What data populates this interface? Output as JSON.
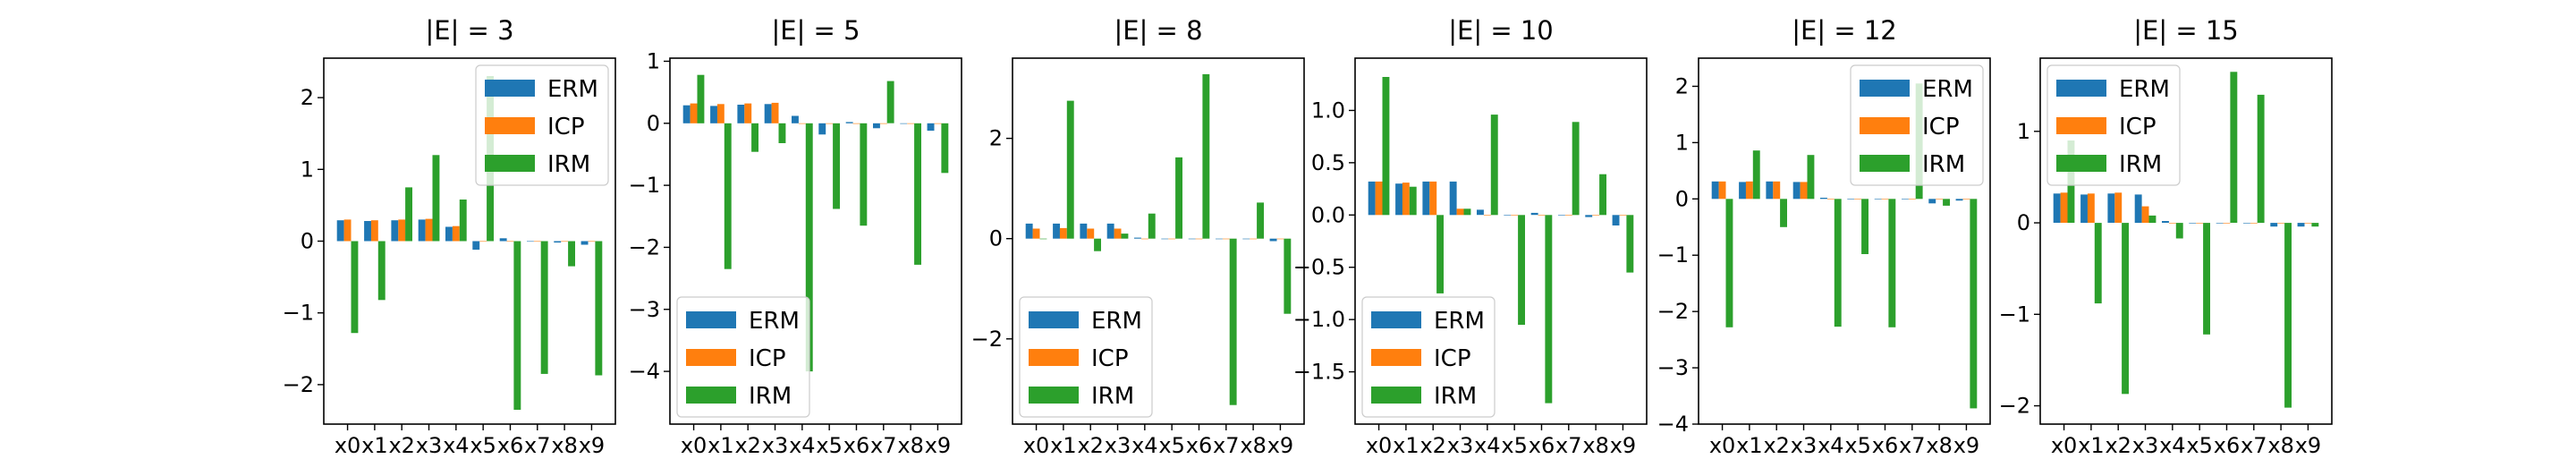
{
  "colors": {
    "ERM": "#1f77b4",
    "ICP": "#ff7f0e",
    "IRM": "#2ca02c"
  },
  "chart_data": [
    {
      "type": "bar",
      "title": "|E| = 3",
      "categories": [
        "x0",
        "x1",
        "x2",
        "x3",
        "x4",
        "x5",
        "x6",
        "x7",
        "x8",
        "x9"
      ],
      "series": [
        {
          "name": "ERM",
          "values": [
            0.29,
            0.28,
            0.29,
            0.3,
            0.2,
            -0.12,
            0.04,
            0.0,
            -0.02,
            -0.05
          ]
        },
        {
          "name": "ICP",
          "values": [
            0.3,
            0.29,
            0.3,
            0.31,
            0.21,
            0.0,
            0.0,
            0.0,
            0.0,
            0.0
          ]
        },
        {
          "name": "IRM",
          "values": [
            -1.28,
            -0.82,
            0.75,
            1.2,
            0.58,
            2.3,
            -2.35,
            -1.85,
            -0.35,
            -1.87
          ]
        }
      ],
      "ylim": [
        -2.55,
        2.55
      ],
      "yticks": [
        -2,
        -1,
        0,
        1,
        2
      ],
      "ytick_labels": [
        "−2",
        "−1",
        "0",
        "1",
        "2"
      ],
      "legend": "upper right"
    },
    {
      "type": "bar",
      "title": "|E| = 5",
      "categories": [
        "x0",
        "x1",
        "x2",
        "x3",
        "x4",
        "x5",
        "x6",
        "x7",
        "x8",
        "x9"
      ],
      "series": [
        {
          "name": "ERM",
          "values": [
            0.29,
            0.28,
            0.3,
            0.31,
            0.12,
            -0.18,
            0.02,
            -0.08,
            0.0,
            -0.12
          ]
        },
        {
          "name": "ICP",
          "values": [
            0.32,
            0.31,
            0.32,
            0.33,
            0.0,
            0.0,
            0.0,
            0.0,
            0.0,
            0.0
          ]
        },
        {
          "name": "IRM",
          "values": [
            0.78,
            -2.35,
            -0.46,
            -0.32,
            -4.0,
            -1.38,
            -1.65,
            0.68,
            -2.28,
            -0.8
          ]
        }
      ],
      "ylim": [
        -4.85,
        1.05
      ],
      "yticks": [
        -4,
        -3,
        -2,
        -1,
        0,
        1
      ],
      "ytick_labels": [
        "−4",
        "−3",
        "−2",
        "−1",
        "0",
        "1"
      ],
      "legend": "lower left"
    },
    {
      "type": "bar",
      "title": "|E| = 8",
      "categories": [
        "x0",
        "x1",
        "x2",
        "x3",
        "x4",
        "x5",
        "x6",
        "x7",
        "x8",
        "x9"
      ],
      "series": [
        {
          "name": "ERM",
          "values": [
            0.3,
            0.3,
            0.3,
            0.3,
            0.02,
            0.0,
            0.0,
            0.0,
            0.0,
            -0.05
          ]
        },
        {
          "name": "ICP",
          "values": [
            0.2,
            0.21,
            0.2,
            0.2,
            0.0,
            0.0,
            0.0,
            0.0,
            0.0,
            0.0
          ]
        },
        {
          "name": "IRM",
          "values": [
            0.0,
            2.75,
            -0.25,
            0.1,
            0.5,
            1.62,
            3.28,
            -3.32,
            0.72,
            -1.5
          ]
        }
      ],
      "ylim": [
        -3.7,
        3.6
      ],
      "yticks": [
        -2,
        0,
        2
      ],
      "ytick_labels": [
        "−2",
        "0",
        "2"
      ],
      "legend": "lower left"
    },
    {
      "type": "bar",
      "title": "|E| = 10",
      "categories": [
        "x0",
        "x1",
        "x2",
        "x3",
        "x4",
        "x5",
        "x6",
        "x7",
        "x8",
        "x9"
      ],
      "series": [
        {
          "name": "ERM",
          "values": [
            0.32,
            0.3,
            0.32,
            0.32,
            0.05,
            0.0,
            0.02,
            0.0,
            -0.02,
            -0.1
          ]
        },
        {
          "name": "ICP",
          "values": [
            0.32,
            0.31,
            0.32,
            0.06,
            0.0,
            0.0,
            0.0,
            0.0,
            0.0,
            0.0
          ]
        },
        {
          "name": "IRM",
          "values": [
            1.32,
            0.27,
            -0.75,
            0.06,
            0.96,
            -1.05,
            -1.8,
            0.89,
            0.39,
            -0.55
          ]
        }
      ],
      "ylim": [
        -2.0,
        1.5
      ],
      "yticks": [
        -1.5,
        -1.0,
        -0.5,
        0.0,
        0.5,
        1.0
      ],
      "ytick_labels": [
        "−1.5",
        "−1.0",
        "−0.5",
        "0.0",
        "0.5",
        "1.0"
      ],
      "legend": "lower left"
    },
    {
      "type": "bar",
      "title": "|E| = 12",
      "categories": [
        "x0",
        "x1",
        "x2",
        "x3",
        "x4",
        "x5",
        "x6",
        "x7",
        "x8",
        "x9"
      ],
      "series": [
        {
          "name": "ERM",
          "values": [
            0.31,
            0.3,
            0.31,
            0.3,
            0.02,
            0.0,
            0.0,
            0.0,
            -0.08,
            -0.03
          ]
        },
        {
          "name": "ICP",
          "values": [
            0.31,
            0.31,
            0.31,
            0.3,
            0.0,
            0.0,
            0.0,
            0.0,
            0.0,
            0.0
          ]
        },
        {
          "name": "IRM",
          "values": [
            -2.28,
            0.86,
            -0.5,
            0.78,
            -2.27,
            -0.98,
            -2.28,
            2.05,
            -0.12,
            -3.72
          ]
        }
      ],
      "ylim": [
        -4.0,
        2.5
      ],
      "yticks": [
        -4,
        -3,
        -2,
        -1,
        0,
        1,
        2
      ],
      "ytick_labels": [
        "−4",
        "−3",
        "−2",
        "−1",
        "0",
        "1",
        "2"
      ],
      "legend": "upper right"
    },
    {
      "type": "bar",
      "title": "|E| = 15",
      "categories": [
        "x0",
        "x1",
        "x2",
        "x3",
        "x4",
        "x5",
        "x6",
        "x7",
        "x8",
        "x9"
      ],
      "series": [
        {
          "name": "ERM",
          "values": [
            0.32,
            0.31,
            0.32,
            0.31,
            0.02,
            0.0,
            0.0,
            0.0,
            -0.04,
            -0.04
          ]
        },
        {
          "name": "ICP",
          "values": [
            0.33,
            0.32,
            0.33,
            0.18,
            0.0,
            0.0,
            0.0,
            0.0,
            0.0,
            0.0
          ]
        },
        {
          "name": "IRM",
          "values": [
            0.9,
            -0.88,
            -1.87,
            0.08,
            -0.17,
            -1.22,
            1.65,
            1.4,
            -2.02,
            -0.04
          ]
        }
      ],
      "ylim": [
        -2.2,
        1.8
      ],
      "yticks": [
        -2,
        -1,
        0,
        1
      ],
      "ytick_labels": [
        "−2",
        "−1",
        "0",
        "1"
      ],
      "legend": "upper left"
    }
  ]
}
